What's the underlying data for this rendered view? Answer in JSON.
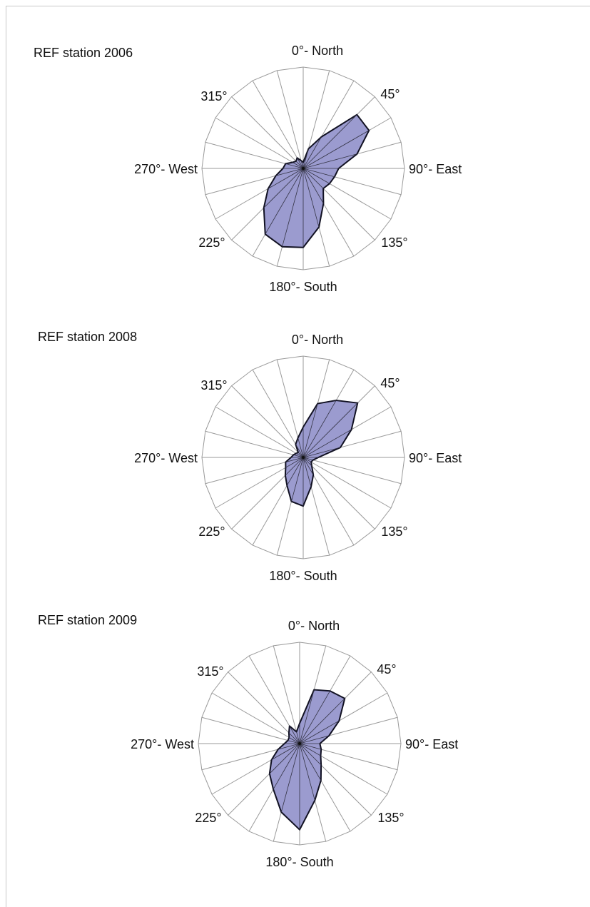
{
  "chart_data": [
    {
      "type": "radar",
      "title": "REF station 2006",
      "direction_labels": [
        "0°- North",
        "45°",
        "90°- East",
        "135°",
        "180°- South",
        "225°",
        "270°- West",
        "315°"
      ],
      "sector_count": 24,
      "angles_deg": [
        0,
        15,
        30,
        45,
        60,
        75,
        90,
        105,
        120,
        135,
        150,
        165,
        180,
        195,
        210,
        225,
        240,
        255,
        270,
        285,
        300,
        315,
        330,
        345
      ],
      "values": [
        0.06,
        0.2,
        0.36,
        0.75,
        0.75,
        0.55,
        0.35,
        0.32,
        0.3,
        0.28,
        0.4,
        0.6,
        0.78,
        0.8,
        0.75,
        0.55,
        0.4,
        0.28,
        0.2,
        0.18,
        0.12,
        0.1,
        0.12,
        0.08
      ],
      "rlim": [
        0,
        1
      ]
    },
    {
      "type": "radar",
      "title": "REF station 2008",
      "direction_labels": [
        "0°- North",
        "45°",
        "90°- East",
        "135°",
        "180°- South",
        "225°",
        "270°- West",
        "315°"
      ],
      "sector_count": 24,
      "angles_deg": [
        0,
        15,
        30,
        45,
        60,
        75,
        90,
        105,
        120,
        135,
        150,
        165,
        180,
        195,
        210,
        225,
        240,
        255,
        270,
        285,
        300,
        315,
        330,
        345
      ],
      "values": [
        0.3,
        0.55,
        0.65,
        0.76,
        0.55,
        0.38,
        0.15,
        0.1,
        0.09,
        0.12,
        0.2,
        0.3,
        0.48,
        0.45,
        0.32,
        0.25,
        0.2,
        0.18,
        0.12,
        0.1,
        0.08,
        0.07,
        0.15,
        0.2
      ],
      "rlim": [
        0,
        1
      ]
    },
    {
      "type": "radar",
      "title": "REF station 2009",
      "direction_labels": [
        "0°- North",
        "45°",
        "90°- East",
        "135°",
        "180°- South",
        "225°",
        "270°- West",
        "315°"
      ],
      "sector_count": 24,
      "angles_deg": [
        0,
        15,
        30,
        45,
        60,
        75,
        90,
        105,
        120,
        135,
        150,
        165,
        180,
        195,
        210,
        225,
        240,
        255,
        270,
        285,
        300,
        315,
        330,
        345
      ],
      "values": [
        0.2,
        0.55,
        0.6,
        0.63,
        0.45,
        0.3,
        0.2,
        0.22,
        0.24,
        0.3,
        0.42,
        0.58,
        0.85,
        0.7,
        0.52,
        0.42,
        0.32,
        0.22,
        0.15,
        0.12,
        0.12,
        0.15,
        0.2,
        0.12
      ],
      "rlim": [
        0,
        1
      ]
    }
  ]
}
